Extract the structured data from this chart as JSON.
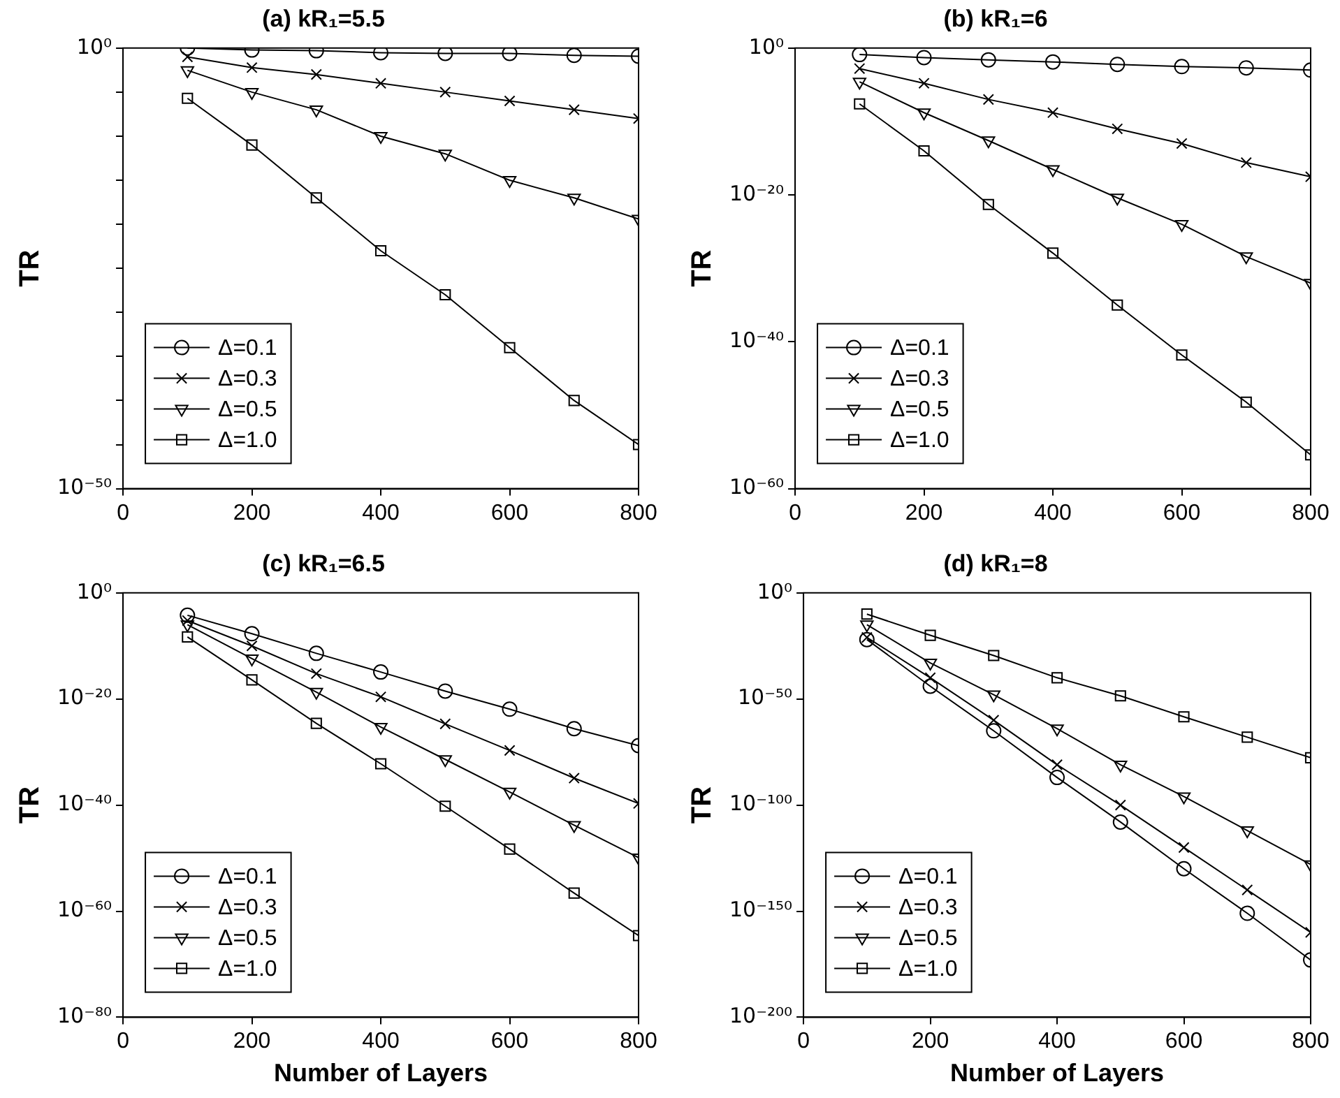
{
  "chart_data": [
    {
      "type": "line",
      "title": "(a) kR₁=5.5",
      "ylabel": "TR",
      "log": "y",
      "grid": false,
      "legend": "bottom left",
      "line_style": "solid",
      "x": [
        100,
        200,
        300,
        400,
        500,
        600,
        700,
        800
      ],
      "xlim": [
        0,
        800
      ],
      "xticks": [
        0,
        200,
        400,
        600,
        800
      ],
      "ylim": [
        1e-50,
        1
      ],
      "yticks": [
        {
          "value": 1,
          "label": "10⁰"
        },
        {
          "value": 1e-05,
          "label": null
        },
        {
          "value": 1e-10,
          "label": null
        },
        {
          "value": 1e-15,
          "label": null
        },
        {
          "value": 1e-20,
          "label": null
        },
        {
          "value": 1e-25,
          "label": null
        },
        {
          "value": 1e-30,
          "label": null
        },
        {
          "value": 1e-35,
          "label": null
        },
        {
          "value": 1e-40,
          "label": null
        },
        {
          "value": 1e-45,
          "label": null
        },
        {
          "value": 1e-50,
          "label": "10⁻⁵⁰"
        }
      ],
      "series": [
        {
          "name": "Δ=0.1",
          "color": "#000000",
          "marker": "circle",
          "values": [
            1,
            0.6,
            0.5,
            0.3,
            0.25,
            0.25,
            0.15,
            0.12
          ]
        },
        {
          "name": "Δ=0.3",
          "color": "#000000",
          "marker": "cross",
          "values": [
            0.1,
            0.006,
            0.001,
            0.0001,
            1e-05,
            1e-06,
            1e-07,
            1e-08
          ]
        },
        {
          "name": "Δ=0.5",
          "color": "#000000",
          "marker": "triangle",
          "values": [
            0.003,
            1e-05,
            1e-07,
            1e-10,
            1e-12,
            1e-15,
            1e-17,
            4e-20
          ]
        },
        {
          "name": "Δ=1.0",
          "color": "#000000",
          "marker": "square",
          "values": [
            2e-06,
            1e-11,
            1e-17,
            1e-23,
            1e-28,
            1e-34,
            1e-40,
            1e-45
          ]
        }
      ]
    },
    {
      "type": "line",
      "title": "(b) kR₁=6",
      "ylabel": "TR",
      "log": "y",
      "grid": false,
      "legend": "bottom left",
      "line_style": "solid",
      "x": [
        100,
        200,
        300,
        400,
        500,
        600,
        700,
        800
      ],
      "xlim": [
        0,
        800
      ],
      "xticks": [
        0,
        200,
        400,
        600,
        800
      ],
      "ylim": [
        1e-60,
        1
      ],
      "yticks": [
        {
          "value": 1,
          "label": "10⁰"
        },
        {
          "value": 1e-20,
          "label": "10⁻²⁰"
        },
        {
          "value": 1e-40,
          "label": "10⁻⁴⁰"
        },
        {
          "value": 1e-60,
          "label": "10⁻⁶⁰"
        }
      ],
      "series": [
        {
          "name": "Δ=0.1",
          "color": "#000000",
          "marker": "circle",
          "values": [
            0.13,
            0.05,
            0.025,
            0.013,
            0.006,
            0.003,
            0.002,
            0.001
          ]
        },
        {
          "name": "Δ=0.3",
          "color": "#000000",
          "marker": "cross",
          "values": [
            0.0016,
            1.6e-05,
            1e-07,
            1.6e-09,
            1e-11,
            1e-13,
            2.5e-16,
            3e-18
          ]
        },
        {
          "name": "Δ=0.5",
          "color": "#000000",
          "marker": "triangle",
          "values": [
            2.5e-05,
            1.6e-09,
            2.5e-13,
            3e-17,
            4e-21,
            1e-24,
            4e-29,
            1e-32
          ]
        },
        {
          "name": "Δ=1.0",
          "color": "#000000",
          "marker": "square",
          "values": [
            2.5e-08,
            1e-14,
            5e-22,
            1.2e-28,
            1e-35,
            1.6e-42,
            6e-49,
            4e-56
          ]
        }
      ]
    },
    {
      "type": "line",
      "title": "(c) kR₁=6.5",
      "xlabel": "Number of Layers",
      "ylabel": "TR",
      "log": "y",
      "grid": false,
      "legend": "bottom left",
      "line_style": "solid",
      "x": [
        100,
        200,
        300,
        400,
        500,
        600,
        700,
        800
      ],
      "xlim": [
        0,
        800
      ],
      "xticks": [
        0,
        200,
        400,
        600,
        800
      ],
      "ylim": [
        1e-80,
        1
      ],
      "yticks": [
        {
          "value": 1,
          "label": "10⁰"
        },
        {
          "value": 1e-20,
          "label": "10⁻²⁰"
        },
        {
          "value": 1e-40,
          "label": "10⁻⁴⁰"
        },
        {
          "value": 1e-60,
          "label": "10⁻⁶⁰"
        },
        {
          "value": 1e-80,
          "label": "10⁻⁸⁰"
        }
      ],
      "series": [
        {
          "name": "Δ=0.1",
          "color": "#000000",
          "marker": "circle",
          "values": [
            6e-05,
            2e-08,
            4e-12,
            1.2e-15,
            3e-19,
            1.2e-22,
            2.5e-26,
            1.6e-29
          ]
        },
        {
          "name": "Δ=0.3",
          "color": "#000000",
          "marker": "cross",
          "values": [
            6e-06,
            1e-10,
            6e-16,
            2.5e-20,
            2e-25,
            2e-30,
            1.2e-35,
            2e-40
          ]
        },
        {
          "name": "Δ=0.5",
          "color": "#000000",
          "marker": "triangle",
          "values": [
            1e-06,
            4e-13,
            2e-19,
            5e-26,
            4e-32,
            3e-38,
            1.6e-44,
            1.2e-50
          ]
        },
        {
          "name": "Δ=1.0",
          "color": "#000000",
          "marker": "square",
          "values": [
            5e-09,
            4e-17,
            2.5e-25,
            6e-33,
            6e-41,
            5e-49,
            2.5e-57,
            2.5e-65
          ]
        }
      ]
    },
    {
      "type": "line",
      "title": "(d) kR₁=8",
      "xlabel": "Number of Layers",
      "ylabel": "TR",
      "log": "y",
      "grid": false,
      "legend": "bottom left",
      "line_style": "solid",
      "x": [
        100,
        200,
        300,
        400,
        500,
        600,
        700,
        800
      ],
      "xlim": [
        0,
        800
      ],
      "xticks": [
        0,
        200,
        400,
        600,
        800
      ],
      "ylim": [
        1e-200,
        1
      ],
      "yticks": [
        {
          "value": 1,
          "label": "10⁰"
        },
        {
          "value": 1e-50,
          "label": "10⁻⁵⁰"
        },
        {
          "value": 1e-100,
          "label": "10⁻¹⁰⁰"
        },
        {
          "value": 1e-150,
          "label": "10⁻¹⁵⁰"
        },
        {
          "value": 1e-200,
          "label": "10⁻²⁰⁰"
        }
      ],
      "series": [
        {
          "name": "Δ=0.1",
          "color": "#000000",
          "marker": "circle",
          "values": [
            1e-22,
            1e-44,
            1e-65,
            1e-87,
            1e-108,
            1e-130,
            1e-151,
            1e-173
          ]
        },
        {
          "name": "Δ=0.3",
          "color": "#000000",
          "marker": "cross",
          "values": [
            1e-21,
            1e-40,
            1e-60,
            1e-81,
            1e-100,
            1e-120,
            1e-140,
            1e-160
          ]
        },
        {
          "name": "Δ=0.5",
          "color": "#000000",
          "marker": "triangle",
          "values": [
            1e-15,
            1e-33,
            1e-48,
            1e-64,
            1e-81,
            1e-96,
            1e-112,
            1e-128
          ]
        },
        {
          "name": "Δ=1.0",
          "color": "#000000",
          "marker": "square",
          "values": [
            1e-10,
            1e-20,
            3e-30,
            1e-40,
            3e-49,
            4e-59,
            1e-68,
            2e-78
          ]
        }
      ]
    }
  ]
}
